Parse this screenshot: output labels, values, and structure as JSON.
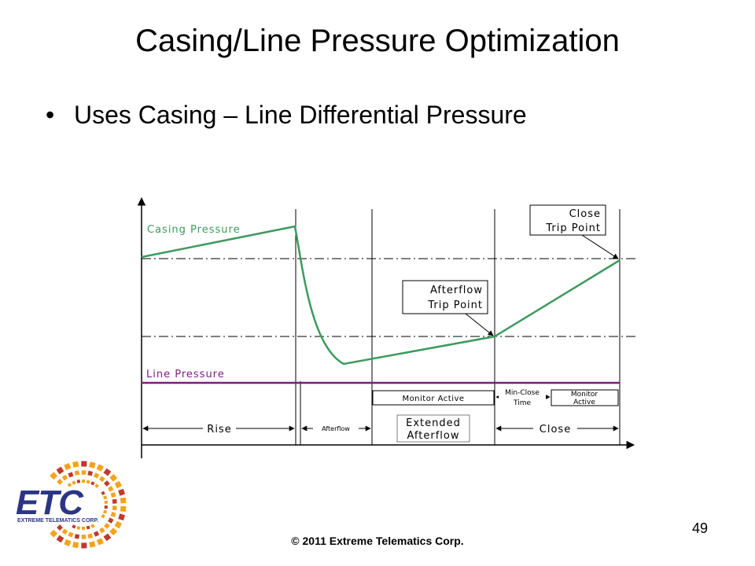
{
  "slide": {
    "title": "Casing/Line Pressure Optimization",
    "bullet": "Uses Casing – Line Differential Pressure",
    "copyright": "© 2011 Extreme Telematics Corp.",
    "page_number": "49"
  },
  "diagram": {
    "casing_label": "Casing Pressure",
    "line_label": "Line Pressure",
    "close_callout": [
      "Close",
      "Trip Point"
    ],
    "afterflow_callout": [
      "Afterflow",
      "Trip Point"
    ],
    "monitor_active": "Monitor Active",
    "min_close": [
      "Min-Close",
      "Time"
    ],
    "monitor_active_2": [
      "Monitor",
      "Active"
    ],
    "phases": {
      "rise": "Rise",
      "afterflow": "Afterflow",
      "extended": [
        "Extended",
        "Afterflow"
      ],
      "close": "Close"
    },
    "colors": {
      "casing": "#3d9a5e",
      "line": "#7a1f7a"
    }
  },
  "logo": {
    "text": "ETC",
    "subtext": "EXTREME TELEMATICS CORP.",
    "colors": {
      "navy": "#2b3583",
      "orange": "#f5a31a",
      "red": "#c0392b"
    }
  }
}
